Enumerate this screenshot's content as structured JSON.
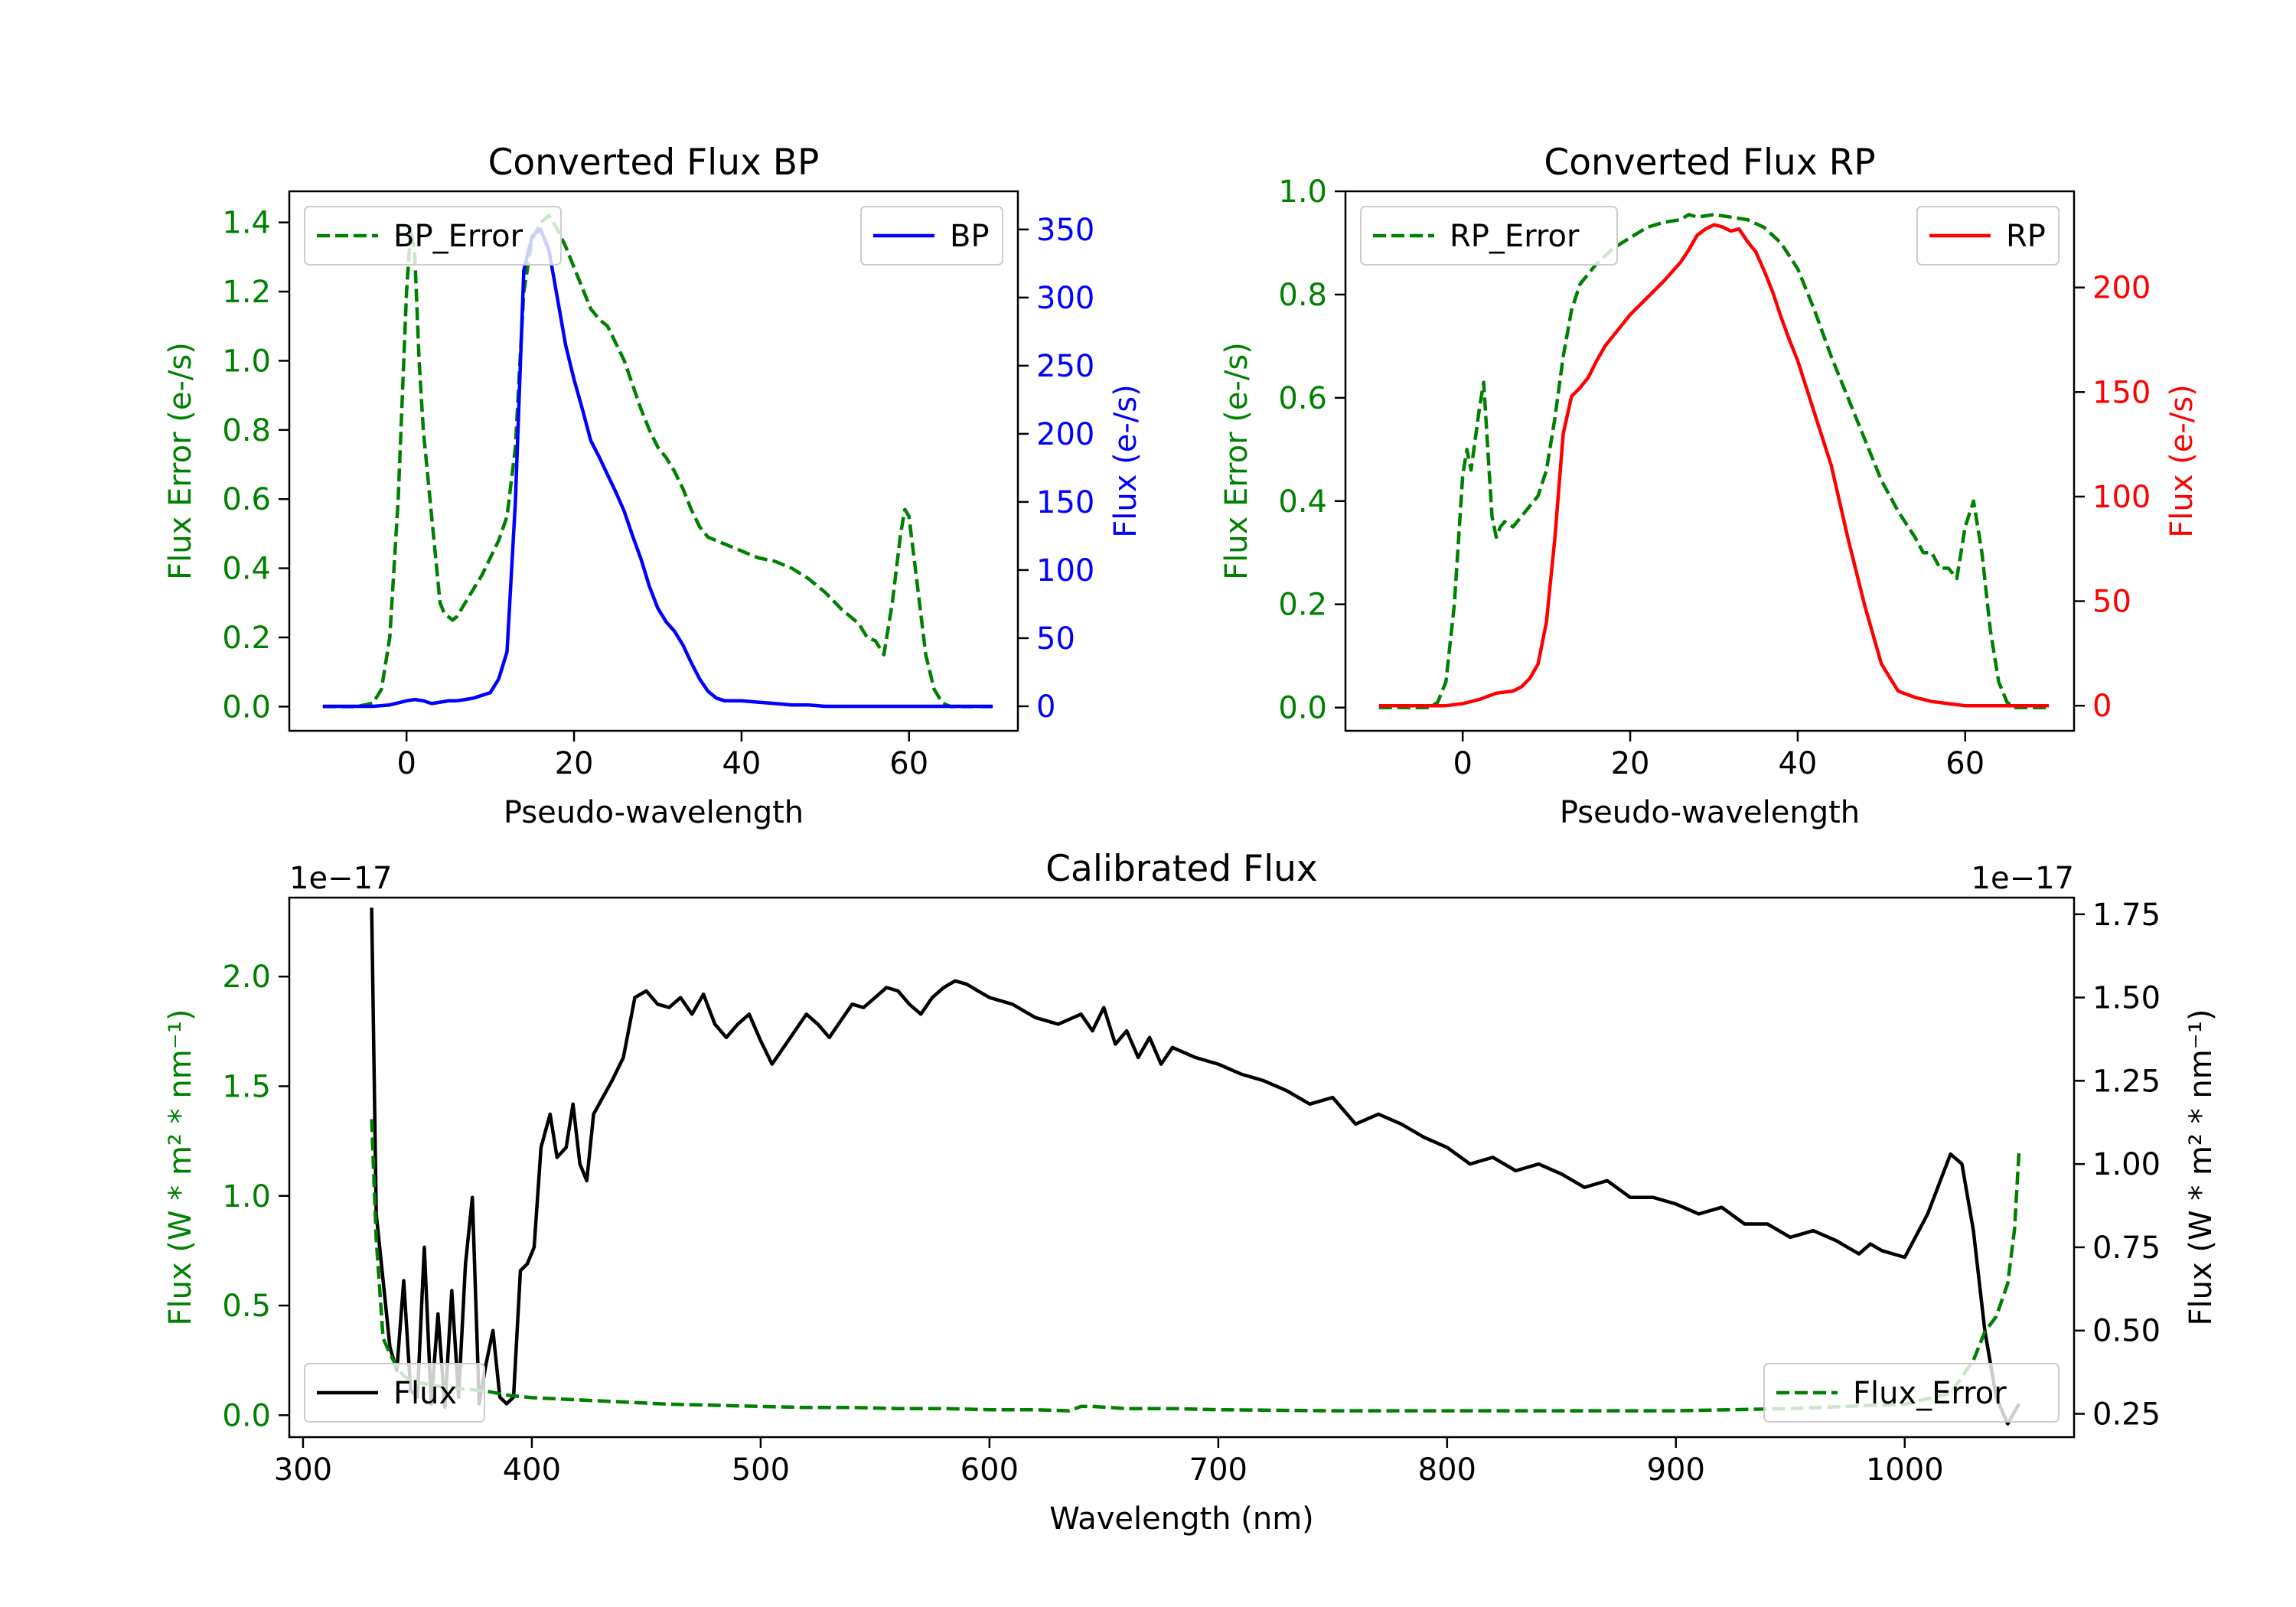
{
  "figure": {
    "background": "#ffffff"
  },
  "colors": {
    "green": "#008000",
    "blue": "#0000ff",
    "red": "#ff0000",
    "black": "#000000"
  },
  "chart_data": [
    {
      "id": "bp",
      "type": "line",
      "title": "Converted Flux BP",
      "xlabel": "Pseudo-wavelength",
      "xlim": [
        -14,
        73
      ],
      "xticks": [
        0,
        20,
        40,
        60
      ],
      "left_axis": {
        "label": "Flux Error (e-/s)",
        "color": "#008000",
        "lim": [
          -0.07,
          1.49
        ],
        "ticks": [
          0.0,
          0.2,
          0.4,
          0.6,
          0.8,
          1.0,
          1.2,
          1.4
        ],
        "tick_labels": [
          "0.0",
          "0.2",
          "0.4",
          "0.6",
          "0.8",
          "1.0",
          "1.2",
          "1.4"
        ]
      },
      "right_axis": {
        "label": "Flux (e-/s)",
        "color": "#0000ff",
        "lim": [
          -18,
          378
        ],
        "ticks": [
          0,
          50,
          100,
          150,
          200,
          250,
          300,
          350
        ],
        "tick_labels": [
          "0",
          "50",
          "100",
          "150",
          "200",
          "250",
          "300",
          "350"
        ]
      },
      "series": [
        {
          "name": "BP_Error",
          "axis": "left",
          "color": "#008000",
          "dash": true,
          "x": [
            -10,
            -6,
            -4,
            -3,
            -2,
            -1,
            0,
            0.5,
            1,
            1.5,
            2,
            3,
            4,
            4.5,
            5,
            5.5,
            6,
            7,
            8,
            9,
            10,
            11,
            12,
            13,
            14,
            15,
            16,
            17,
            18,
            19,
            20,
            21,
            22,
            23,
            24,
            25,
            26,
            27,
            28,
            29,
            30,
            31,
            32,
            33,
            34,
            35,
            36,
            38,
            40,
            42,
            44,
            46,
            48,
            50,
            52,
            54,
            55,
            56,
            57,
            58,
            59,
            59.5,
            60,
            61,
            62,
            63,
            64,
            65,
            66,
            68,
            70
          ],
          "y": [
            0,
            0,
            0.01,
            0.05,
            0.2,
            0.6,
            1.2,
            1.38,
            1.3,
            1.0,
            0.8,
            0.55,
            0.3,
            0.27,
            0.26,
            0.25,
            0.26,
            0.3,
            0.34,
            0.38,
            0.43,
            0.48,
            0.55,
            0.75,
            1.2,
            1.35,
            1.4,
            1.42,
            1.38,
            1.33,
            1.27,
            1.21,
            1.15,
            1.12,
            1.1,
            1.05,
            1.0,
            0.93,
            0.86,
            0.8,
            0.75,
            0.72,
            0.68,
            0.63,
            0.57,
            0.52,
            0.49,
            0.47,
            0.45,
            0.43,
            0.42,
            0.4,
            0.37,
            0.33,
            0.28,
            0.24,
            0.2,
            0.19,
            0.15,
            0.3,
            0.5,
            0.57,
            0.55,
            0.35,
            0.15,
            0.05,
            0.01,
            0,
            0,
            0,
            0
          ]
        },
        {
          "name": "BP",
          "axis": "right",
          "color": "#0000ff",
          "dash": false,
          "x": [
            -10,
            -4,
            -2,
            0,
            1,
            2,
            3,
            4,
            5,
            6,
            7,
            8,
            9,
            10,
            11,
            12,
            13,
            14,
            15,
            16,
            17,
            18,
            19,
            20,
            21,
            22,
            23,
            24,
            25,
            26,
            27,
            28,
            29,
            30,
            31,
            32,
            33,
            34,
            35,
            36,
            37,
            38,
            40,
            42,
            44,
            46,
            48,
            50,
            52,
            54,
            56,
            58,
            60,
            62,
            64,
            66,
            68,
            70
          ],
          "y": [
            0,
            0,
            1,
            4,
            5,
            4,
            2,
            3,
            4,
            4,
            5,
            6,
            8,
            10,
            20,
            40,
            150,
            320,
            345,
            350,
            335,
            300,
            265,
            240,
            218,
            195,
            183,
            170,
            157,
            143,
            125,
            108,
            88,
            72,
            62,
            55,
            45,
            32,
            20,
            11,
            6,
            4,
            4,
            3,
            2,
            1,
            1,
            0,
            0,
            0,
            0,
            0,
            0,
            0,
            0,
            0,
            0,
            0
          ]
        }
      ],
      "legends": [
        {
          "label": "BP_Error",
          "position": "upper-left"
        },
        {
          "label": "BP",
          "position": "upper-right"
        }
      ]
    },
    {
      "id": "rp",
      "type": "line",
      "title": "Converted Flux RP",
      "xlabel": "Pseudo-wavelength",
      "xlim": [
        -14,
        73
      ],
      "xticks": [
        0,
        20,
        40,
        60
      ],
      "left_axis": {
        "label": "Flux Error (e-/s)",
        "color": "#008000",
        "lim": [
          -0.045,
          1.0
        ],
        "ticks": [
          0.0,
          0.2,
          0.4,
          0.6,
          0.8,
          1.0
        ],
        "tick_labels": [
          "0.0",
          "0.2",
          "0.4",
          "0.6",
          "0.8",
          "1.0"
        ]
      },
      "right_axis": {
        "label": "Flux (e-/s)",
        "color": "#ff0000",
        "lim": [
          -12,
          246
        ],
        "ticks": [
          0,
          50,
          100,
          150,
          200
        ],
        "tick_labels": [
          "0",
          "50",
          "100",
          "150",
          "200"
        ]
      },
      "series": [
        {
          "name": "RP_Error",
          "axis": "left",
          "color": "#008000",
          "dash": true,
          "x": [
            -10,
            -4,
            -3,
            -2,
            -1,
            0,
            0.5,
            1,
            1.5,
            2,
            2.5,
            3,
            3.5,
            4,
            4.5,
            5,
            6,
            7,
            8,
            9,
            10,
            11,
            12,
            13,
            14,
            15,
            16,
            18,
            20,
            22,
            24,
            26,
            27,
            28,
            30,
            32,
            34,
            36,
            38,
            40,
            42,
            44,
            46,
            48,
            50,
            52,
            54,
            55,
            56,
            57,
            58,
            59,
            60,
            61,
            62,
            63,
            64,
            65,
            66,
            68,
            70
          ],
          "y": [
            0,
            0,
            0.01,
            0.05,
            0.2,
            0.45,
            0.5,
            0.46,
            0.52,
            0.58,
            0.63,
            0.5,
            0.37,
            0.33,
            0.35,
            0.36,
            0.35,
            0.37,
            0.39,
            0.41,
            0.46,
            0.56,
            0.68,
            0.77,
            0.82,
            0.84,
            0.86,
            0.89,
            0.91,
            0.93,
            0.94,
            0.945,
            0.955,
            0.95,
            0.955,
            0.95,
            0.945,
            0.93,
            0.9,
            0.85,
            0.77,
            0.68,
            0.6,
            0.52,
            0.44,
            0.38,
            0.33,
            0.3,
            0.3,
            0.27,
            0.27,
            0.25,
            0.35,
            0.4,
            0.3,
            0.15,
            0.05,
            0.01,
            0,
            0,
            0
          ]
        },
        {
          "name": "RP",
          "axis": "right",
          "color": "#ff0000",
          "dash": false,
          "x": [
            -10,
            -4,
            -2,
            0,
            2,
            4,
            6,
            7,
            8,
            9,
            10,
            11,
            12,
            13,
            14,
            15,
            16,
            17,
            18,
            19,
            20,
            22,
            24,
            26,
            27,
            28,
            29,
            30,
            31,
            32,
            33,
            34,
            35,
            36,
            37,
            38,
            39,
            40,
            42,
            44,
            46,
            48,
            50,
            52,
            54,
            56,
            58,
            60,
            62,
            64,
            66,
            68,
            70
          ],
          "y": [
            0,
            0,
            0,
            1,
            3,
            6,
            7,
            9,
            13,
            20,
            40,
            80,
            130,
            148,
            152,
            157,
            165,
            172,
            177,
            182,
            187,
            195,
            203,
            212,
            218,
            225,
            228,
            230,
            229,
            227,
            228,
            222,
            217,
            208,
            198,
            186,
            175,
            165,
            140,
            115,
            80,
            48,
            20,
            7,
            4,
            2,
            1,
            0,
            0,
            0,
            0,
            0,
            0
          ]
        }
      ],
      "legends": [
        {
          "label": "RP_Error",
          "position": "upper-left"
        },
        {
          "label": "RP",
          "position": "upper-right"
        }
      ]
    },
    {
      "id": "cal",
      "type": "line",
      "title": "Calibrated Flux",
      "xlabel": "Wavelength (nm)",
      "xlim": [
        294,
        1074
      ],
      "xticks": [
        300,
        400,
        500,
        600,
        700,
        800,
        900,
        1000
      ],
      "left_axis": {
        "label": "Flux (W * m² * nm⁻¹)",
        "color": "#008000",
        "lim": [
          -0.1,
          2.36
        ],
        "ticks": [
          0.0,
          0.5,
          1.0,
          1.5,
          2.0
        ],
        "tick_labels": [
          "0.0",
          "0.5",
          "1.0",
          "1.5",
          "2.0"
        ],
        "offset_label": "1e−17"
      },
      "right_axis": {
        "label": "Flux (W * m² * nm⁻¹)",
        "color": "#000000",
        "lim": [
          0.18,
          1.8
        ],
        "ticks": [
          0.25,
          0.5,
          0.75,
          1.0,
          1.25,
          1.5,
          1.75
        ],
        "tick_labels": [
          "0.25",
          "0.50",
          "0.75",
          "1.00",
          "1.25",
          "1.50",
          "1.75"
        ],
        "offset_label": "1e−17"
      },
      "series": [
        {
          "name": "Flux",
          "axis": "right",
          "color": "#000000",
          "dash": false,
          "x": [
            330,
            332,
            335,
            338,
            341,
            344,
            347,
            350,
            353,
            356,
            359,
            362,
            365,
            368,
            371,
            374,
            377,
            380,
            383,
            386,
            389,
            392,
            395,
            398,
            401,
            404,
            408,
            411,
            415,
            418,
            421,
            424,
            427,
            431,
            435,
            440,
            445,
            450,
            455,
            460,
            465,
            470,
            475,
            480,
            485,
            490,
            495,
            500,
            505,
            510,
            515,
            520,
            525,
            530,
            535,
            540,
            545,
            550,
            555,
            560,
            565,
            570,
            575,
            580,
            585,
            590,
            595,
            600,
            610,
            620,
            630,
            640,
            645,
            650,
            655,
            660,
            665,
            670,
            675,
            680,
            690,
            700,
            710,
            720,
            730,
            740,
            750,
            760,
            770,
            780,
            790,
            800,
            810,
            820,
            830,
            840,
            850,
            860,
            870,
            880,
            890,
            900,
            910,
            920,
            930,
            940,
            950,
            960,
            970,
            975,
            980,
            985,
            990,
            1000,
            1010,
            1020,
            1025,
            1030,
            1035,
            1040,
            1045,
            1050
          ],
          "y": [
            1.77,
            0.85,
            0.65,
            0.45,
            0.38,
            0.65,
            0.32,
            0.3,
            0.75,
            0.28,
            0.55,
            0.27,
            0.62,
            0.3,
            0.7,
            0.9,
            0.28,
            0.4,
            0.5,
            0.3,
            0.28,
            0.3,
            0.68,
            0.7,
            0.75,
            1.05,
            1.15,
            1.02,
            1.05,
            1.18,
            1.0,
            0.95,
            1.15,
            1.2,
            1.25,
            1.32,
            1.5,
            1.52,
            1.48,
            1.47,
            1.5,
            1.45,
            1.51,
            1.42,
            1.38,
            1.42,
            1.45,
            1.37,
            1.3,
            1.35,
            1.4,
            1.45,
            1.42,
            1.38,
            1.43,
            1.48,
            1.47,
            1.5,
            1.53,
            1.52,
            1.48,
            1.45,
            1.5,
            1.53,
            1.55,
            1.54,
            1.52,
            1.5,
            1.48,
            1.44,
            1.42,
            1.45,
            1.4,
            1.47,
            1.36,
            1.4,
            1.32,
            1.38,
            1.3,
            1.35,
            1.32,
            1.3,
            1.27,
            1.25,
            1.22,
            1.18,
            1.2,
            1.12,
            1.15,
            1.12,
            1.08,
            1.05,
            1.0,
            1.02,
            0.98,
            1.0,
            0.97,
            0.93,
            0.95,
            0.9,
            0.9,
            0.88,
            0.85,
            0.87,
            0.82,
            0.82,
            0.78,
            0.8,
            0.77,
            0.75,
            0.73,
            0.76,
            0.74,
            0.72,
            0.85,
            1.03,
            1.0,
            0.8,
            0.5,
            0.3,
            0.22,
            0.28
          ]
        },
        {
          "name": "Flux_Error",
          "axis": "left",
          "color": "#008000",
          "dash": true,
          "x": [
            330,
            332,
            335,
            338,
            341,
            344,
            347,
            350,
            355,
            360,
            370,
            380,
            390,
            400,
            420,
            440,
            460,
            480,
            500,
            520,
            540,
            560,
            580,
            600,
            620,
            635,
            640,
            645,
            660,
            680,
            700,
            750,
            800,
            850,
            900,
            950,
            1000,
            1020,
            1030,
            1035,
            1040,
            1045,
            1048,
            1050
          ],
          "y": [
            1.35,
            0.8,
            0.35,
            0.28,
            0.22,
            0.18,
            0.16,
            0.15,
            0.14,
            0.13,
            0.12,
            0.11,
            0.09,
            0.08,
            0.07,
            0.06,
            0.05,
            0.045,
            0.04,
            0.035,
            0.035,
            0.03,
            0.03,
            0.025,
            0.025,
            0.02,
            0.04,
            0.04,
            0.03,
            0.03,
            0.025,
            0.02,
            0.02,
            0.02,
            0.02,
            0.03,
            0.05,
            0.1,
            0.25,
            0.38,
            0.45,
            0.6,
            0.85,
            1.21
          ]
        }
      ],
      "legends": [
        {
          "label": "Flux",
          "position": "lower-left"
        },
        {
          "label": "Flux_Error",
          "position": "lower-right"
        }
      ]
    }
  ]
}
